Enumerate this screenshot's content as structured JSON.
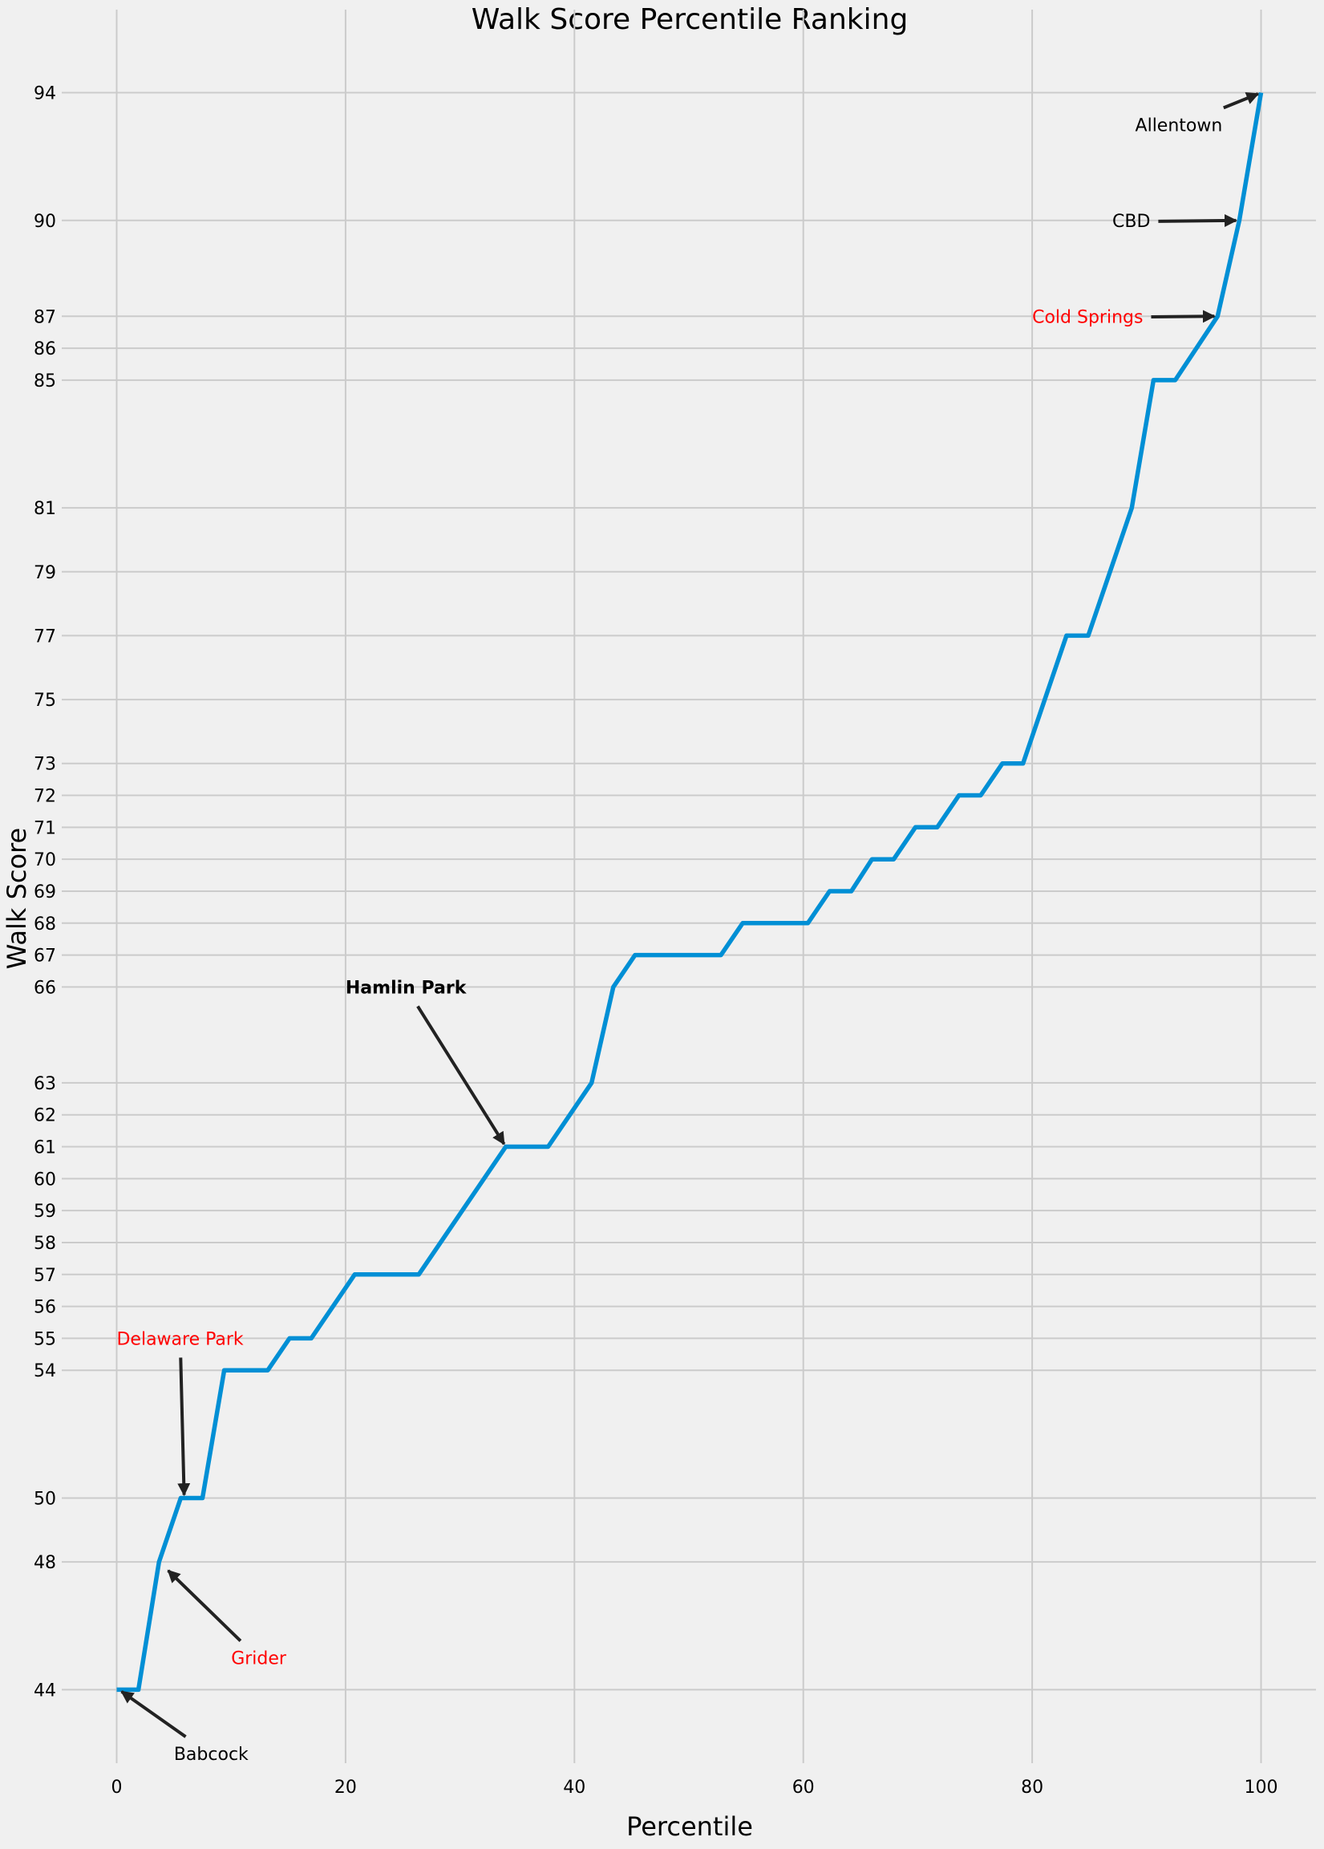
{
  "chart_data": {
    "type": "line",
    "title": "Walk Score Percentile Ranking",
    "xlabel": "Percentile",
    "ylabel": "Walk Score",
    "xlim": [
      -4.8,
      104.8
    ],
    "ylim": [
      41.7,
      96.6
    ],
    "x_ticks": [
      0,
      20,
      40,
      60,
      80,
      100
    ],
    "y_ticks": [
      44,
      48,
      50,
      54,
      55,
      56,
      57,
      58,
      59,
      60,
      61,
      62,
      63,
      66,
      67,
      68,
      69,
      70,
      71,
      72,
      73,
      75,
      77,
      79,
      81,
      85,
      86,
      87,
      90,
      94
    ],
    "grid": true,
    "series": [
      {
        "color": "#008fd5",
        "points": [
          [
            0,
            44
          ],
          [
            1.9,
            44
          ],
          [
            3.7,
            48
          ],
          [
            5.6,
            50
          ],
          [
            7.5,
            50
          ],
          [
            9.4,
            54
          ],
          [
            13.2,
            54
          ],
          [
            15.1,
            55
          ],
          [
            17.0,
            55
          ],
          [
            20.8,
            57
          ],
          [
            26.4,
            57
          ],
          [
            34.0,
            61
          ],
          [
            37.7,
            61
          ],
          [
            41.5,
            63
          ],
          [
            43.4,
            66
          ],
          [
            45.3,
            67
          ],
          [
            52.8,
            67
          ],
          [
            54.7,
            68
          ],
          [
            60.4,
            68
          ],
          [
            62.3,
            69
          ],
          [
            64.2,
            69
          ],
          [
            66.0,
            70
          ],
          [
            67.9,
            70
          ],
          [
            69.8,
            71
          ],
          [
            71.7,
            71
          ],
          [
            73.6,
            72
          ],
          [
            75.5,
            72
          ],
          [
            77.4,
            73
          ],
          [
            79.2,
            73
          ],
          [
            83.0,
            77
          ],
          [
            84.9,
            77
          ],
          [
            88.7,
            81
          ],
          [
            90.6,
            85
          ],
          [
            92.5,
            85
          ],
          [
            96.2,
            87
          ],
          [
            98.1,
            90
          ],
          [
            100,
            94
          ]
        ]
      }
    ],
    "annotations": [
      {
        "text": "Allentown",
        "point": [
          100,
          94
        ],
        "text_pos": [
          89,
          93.0
        ],
        "color": "#000000",
        "weight": "normal"
      },
      {
        "text": "CBD",
        "point": [
          98.1,
          90
        ],
        "text_pos": [
          87,
          90.0
        ],
        "color": "#000000",
        "weight": "normal"
      },
      {
        "text": "Cold Springs",
        "point": [
          96.2,
          87
        ],
        "text_pos": [
          80,
          87.0
        ],
        "color": "#ff0000",
        "weight": "normal"
      },
      {
        "text": "Hamlin Park",
        "point": [
          34.0,
          61
        ],
        "text_pos": [
          20,
          66.0
        ],
        "color": "#000000",
        "weight": "bold"
      },
      {
        "text": "Delaware Park",
        "point": [
          5.9,
          50
        ],
        "text_pos": [
          0,
          55.0
        ],
        "color": "#ff0000",
        "weight": "normal"
      },
      {
        "text": "Grider",
        "point": [
          4.3,
          47.8
        ],
        "text_pos": [
          10,
          45.0
        ],
        "color": "#ff0000",
        "weight": "normal"
      },
      {
        "text": "Babcock",
        "point": [
          0.2,
          44
        ],
        "text_pos": [
          5,
          42.0
        ],
        "color": "#000000",
        "weight": "normal"
      }
    ]
  }
}
